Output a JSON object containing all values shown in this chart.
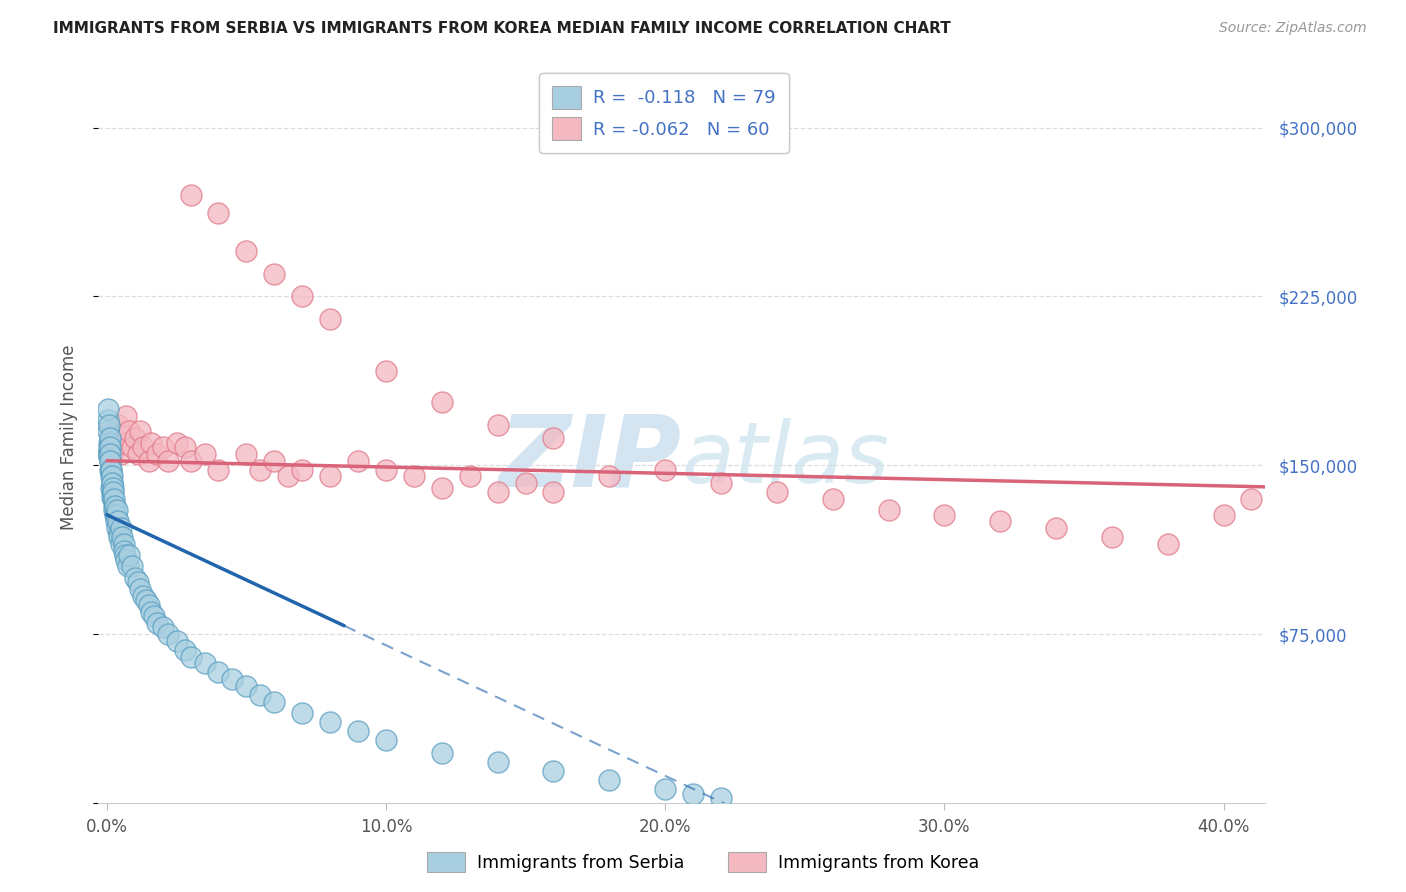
{
  "title": "IMMIGRANTS FROM SERBIA VS IMMIGRANTS FROM KOREA MEDIAN FAMILY INCOME CORRELATION CHART",
  "source": "Source: ZipAtlas.com",
  "ylabel": "Median Family Income",
  "serbia_R": -0.118,
  "serbia_N": 79,
  "korea_R": -0.062,
  "korea_N": 60,
  "serbia_color": "#a8cfe0",
  "serbia_edge_color": "#5a9fc2",
  "korea_color": "#f4b8c1",
  "korea_edge_color": "#e07a8a",
  "serbia_line_color": "#2166ac",
  "korea_line_color": "#d9647a",
  "watermark_zip": "ZIP",
  "watermark_atlas": "atlas",
  "background_color": "#ffffff",
  "grid_color": "#dddddd",
  "ylim": [
    0,
    325000
  ],
  "xlim_left": -0.003,
  "xlim_right": 0.415,
  "ytick_vals": [
    75000,
    150000,
    225000,
    300000
  ],
  "ytick_labels": [
    "$75,000",
    "$150,000",
    "$225,000",
    "$300,000"
  ],
  "xtick_vals": [
    0.0,
    0.1,
    0.2,
    0.3,
    0.4
  ],
  "xtick_labels": [
    "0.0%",
    "10.0%",
    "20.0%",
    "30.0%",
    "40.0%"
  ],
  "serbia_x": [
    0.0003,
    0.0004,
    0.0005,
    0.0006,
    0.0007,
    0.0008,
    0.0008,
    0.0009,
    0.001,
    0.001,
    0.001,
    0.0012,
    0.0012,
    0.0013,
    0.0014,
    0.0015,
    0.0015,
    0.0016,
    0.0017,
    0.0018,
    0.0019,
    0.002,
    0.002,
    0.0021,
    0.0022,
    0.0023,
    0.0025,
    0.0026,
    0.0027,
    0.003,
    0.003,
    0.0032,
    0.0033,
    0.0035,
    0.0036,
    0.004,
    0.0042,
    0.0045,
    0.005,
    0.005,
    0.0055,
    0.006,
    0.006,
    0.0065,
    0.007,
    0.0075,
    0.008,
    0.009,
    0.01,
    0.011,
    0.012,
    0.013,
    0.014,
    0.015,
    0.016,
    0.017,
    0.018,
    0.02,
    0.022,
    0.025,
    0.028,
    0.03,
    0.035,
    0.04,
    0.045,
    0.05,
    0.055,
    0.06,
    0.07,
    0.08,
    0.09,
    0.1,
    0.12,
    0.14,
    0.16,
    0.18,
    0.2,
    0.21,
    0.22
  ],
  "serbia_y": [
    155000,
    165000,
    170000,
    175000,
    168000,
    160000,
    155000,
    158000,
    162000,
    158000,
    152000,
    155000,
    148000,
    152000,
    148000,
    145000,
    140000,
    148000,
    142000,
    138000,
    145000,
    142000,
    136000,
    140000,
    135000,
    138000,
    132000,
    135000,
    130000,
    128000,
    132000,
    128000,
    125000,
    130000,
    122000,
    125000,
    120000,
    118000,
    122000,
    115000,
    118000,
    115000,
    112000,
    110000,
    108000,
    105000,
    110000,
    105000,
    100000,
    98000,
    95000,
    92000,
    90000,
    88000,
    85000,
    83000,
    80000,
    78000,
    75000,
    72000,
    68000,
    65000,
    62000,
    58000,
    55000,
    52000,
    48000,
    45000,
    40000,
    36000,
    32000,
    28000,
    22000,
    18000,
    14000,
    10000,
    6000,
    4000,
    2000
  ],
  "korea_x": [
    0.001,
    0.002,
    0.003,
    0.004,
    0.005,
    0.006,
    0.007,
    0.008,
    0.009,
    0.01,
    0.011,
    0.012,
    0.013,
    0.015,
    0.016,
    0.018,
    0.02,
    0.022,
    0.025,
    0.028,
    0.03,
    0.035,
    0.04,
    0.05,
    0.055,
    0.06,
    0.065,
    0.07,
    0.08,
    0.09,
    0.1,
    0.11,
    0.12,
    0.13,
    0.14,
    0.15,
    0.16,
    0.18,
    0.2,
    0.22,
    0.24,
    0.26,
    0.28,
    0.3,
    0.32,
    0.34,
    0.36,
    0.38,
    0.4,
    0.41,
    0.03,
    0.04,
    0.05,
    0.06,
    0.07,
    0.08,
    0.1,
    0.12,
    0.14,
    0.16
  ],
  "korea_y": [
    158000,
    155000,
    162000,
    168000,
    155000,
    160000,
    172000,
    165000,
    158000,
    162000,
    155000,
    165000,
    158000,
    152000,
    160000,
    155000,
    158000,
    152000,
    160000,
    158000,
    152000,
    155000,
    148000,
    155000,
    148000,
    152000,
    145000,
    148000,
    145000,
    152000,
    148000,
    145000,
    140000,
    145000,
    138000,
    142000,
    138000,
    145000,
    148000,
    142000,
    138000,
    135000,
    130000,
    128000,
    125000,
    122000,
    118000,
    115000,
    128000,
    135000,
    270000,
    262000,
    245000,
    235000,
    225000,
    215000,
    192000,
    178000,
    168000,
    162000
  ]
}
